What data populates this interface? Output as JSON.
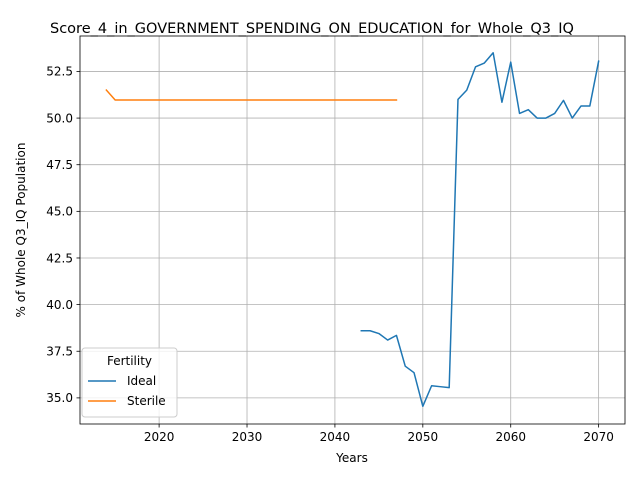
{
  "chart_data": {
    "type": "line",
    "title": "Score_4_in_GOVERNMENT_SPENDING_ON_EDUCATION_for_Whole_Q3_IQ",
    "xlabel": "Years",
    "ylabel": "% of Whole Q3_IQ Population",
    "xlim": [
      2011,
      2073
    ],
    "ylim": [
      33.6,
      54.4
    ],
    "xticks": [
      2020,
      2030,
      2040,
      2050,
      2060,
      2070
    ],
    "xtick_labels": [
      "2020",
      "2030",
      "2040",
      "2050",
      "2060",
      "2070"
    ],
    "yticks": [
      35.0,
      37.5,
      40.0,
      42.5,
      45.0,
      47.5,
      50.0,
      52.5
    ],
    "ytick_labels": [
      "35.0",
      "37.5",
      "40.0",
      "42.5",
      "45.0",
      "47.5",
      "50.0",
      "52.5"
    ],
    "grid": true,
    "legend": {
      "title": "Fertility",
      "placement": "lower-left"
    },
    "series": [
      {
        "name": "Ideal",
        "color": "#1f77b4",
        "x": [
          2043,
          2044,
          2045,
          2046,
          2047,
          2048,
          2049,
          2050,
          2051,
          2052,
          2053,
          2054,
          2055,
          2056,
          2057,
          2058,
          2059,
          2060,
          2061,
          2062,
          2063,
          2064,
          2065,
          2066,
          2067,
          2068,
          2069,
          2070
        ],
        "y": [
          38.6,
          38.6,
          38.45,
          38.1,
          38.35,
          36.7,
          36.35,
          34.55,
          35.65,
          35.6,
          35.55,
          51.0,
          51.5,
          52.75,
          52.95,
          53.5,
          50.85,
          53.0,
          50.25,
          50.45,
          50.0,
          50.0,
          50.25,
          50.95,
          50.0,
          50.65,
          50.65,
          53.05
        ]
      },
      {
        "name": "Sterile",
        "color": "#ff7f0e",
        "x": [
          2014,
          2015,
          2020,
          2025,
          2030,
          2035,
          2040,
          2045,
          2047
        ],
        "y": [
          51.5,
          50.97,
          50.97,
          50.97,
          50.97,
          50.97,
          50.97,
          50.97,
          50.97
        ]
      }
    ]
  }
}
